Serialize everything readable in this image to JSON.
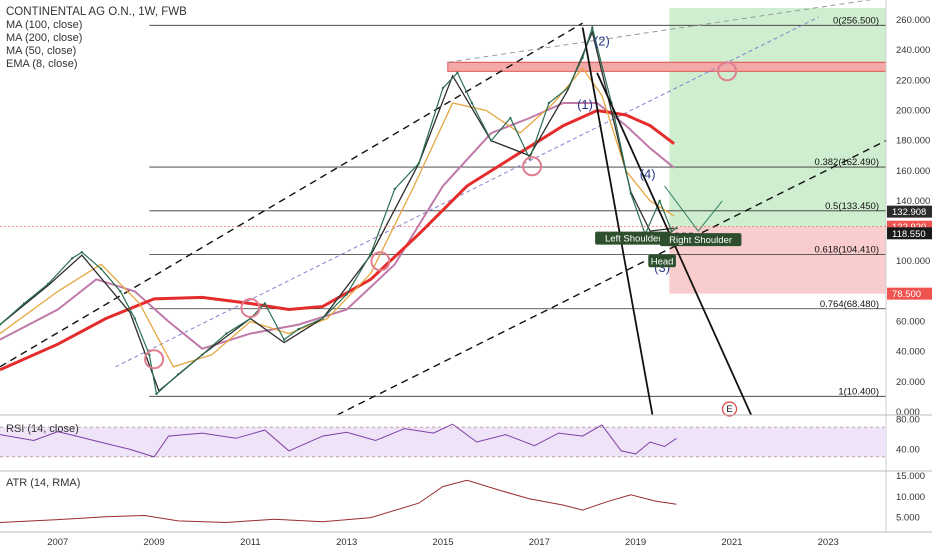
{
  "legend": {
    "title": "CONTINENTAL AG O.N., 1W, FWB",
    "indicators": [
      "MA (100, close)",
      "MA (200, close)",
      "MA (50, close)",
      "EMA (8, close)"
    ]
  },
  "panels": {
    "rsi_label": "RSI (14, close)",
    "atr_label": "ATR (14, RMA)"
  },
  "chart_data": {
    "type": "line",
    "title": "CONTINENTAL AG O.N., 1W, FWB",
    "x_ticks": [
      "2007",
      "2009",
      "2011",
      "2013",
      "2015",
      "2017",
      "2019",
      "2021",
      "2023"
    ],
    "x_tick_years": [
      2007,
      2009,
      2011,
      2013,
      2015,
      2017,
      2019,
      2021,
      2023
    ],
    "xlim": [
      2005.8,
      2024.2
    ],
    "ylim": [
      -2,
      268
    ],
    "y_ticks": [
      0,
      20,
      40,
      60,
      80,
      100,
      120,
      140,
      160,
      180,
      200,
      220,
      240,
      260
    ],
    "y_tick_labels": [
      "0.000",
      "20.000",
      "40.000",
      "60.000",
      "80.000",
      "100.000",
      "120.000",
      "140.000",
      "160.000",
      "180.000",
      "200.000",
      "220.000",
      "240.000",
      "260.000"
    ],
    "price_series": {
      "name": "price",
      "x": [
        2005.8,
        2006.3,
        2006.8,
        2007.3,
        2007.5,
        2007.9,
        2008.3,
        2008.6,
        2008.9,
        2009.05,
        2009.5,
        2010.0,
        2010.5,
        2011.0,
        2011.3,
        2011.7,
        2012.0,
        2012.5,
        2013.0,
        2013.5,
        2014.0,
        2014.5,
        2015.0,
        2015.3,
        2015.6,
        2016.0,
        2016.4,
        2016.8,
        2017.2,
        2017.6,
        2017.9,
        2018.1,
        2018.5,
        2018.9,
        2019.2,
        2019.5,
        2019.75,
        2019.85
      ],
      "values": [
        58,
        72,
        85,
        102,
        106,
        95,
        80,
        62,
        38,
        12,
        25,
        38,
        52,
        62,
        72,
        48,
        55,
        62,
        78,
        105,
        148,
        165,
        215,
        225,
        205,
        180,
        195,
        168,
        205,
        215,
        235,
        255,
        205,
        145,
        118,
        140,
        120,
        122
      ]
    },
    "ma_series": [
      {
        "name": "MA (100, close)",
        "color": "#c07aa8",
        "x": [
          2005.8,
          2007.0,
          2007.8,
          2008.6,
          2009.3,
          2010.0,
          2011.0,
          2012.0,
          2013.0,
          2014.0,
          2015.0,
          2016.0,
          2016.8,
          2017.5,
          2018.2,
          2018.8,
          2019.3,
          2019.8
        ],
        "values": [
          48,
          68,
          88,
          80,
          60,
          42,
          52,
          58,
          68,
          98,
          150,
          185,
          195,
          205,
          205,
          190,
          175,
          162
        ]
      },
      {
        "name": "MA (200, close)",
        "color": "#e52c2c",
        "x": [
          2005.8,
          2007.0,
          2008.0,
          2009.0,
          2010.0,
          2011.0,
          2011.8,
          2012.5,
          2013.5,
          2014.5,
          2015.5,
          2016.5,
          2017.5,
          2018.2,
          2018.8,
          2019.3,
          2019.8
        ],
        "values": [
          28,
          45,
          62,
          75,
          76,
          72,
          68,
          70,
          88,
          118,
          150,
          170,
          190,
          200,
          197,
          190,
          178
        ]
      },
      {
        "name": "MA (50, close)",
        "color": "#e6a640",
        "x": [
          2005.8,
          2007.0,
          2007.9,
          2008.7,
          2009.4,
          2010.2,
          2011.0,
          2011.8,
          2012.6,
          2013.5,
          2014.4,
          2015.2,
          2015.9,
          2016.6,
          2017.3,
          2017.9,
          2018.3,
          2018.8,
          2019.3,
          2019.8
        ],
        "values": [
          52,
          80,
          98,
          72,
          30,
          38,
          60,
          52,
          62,
          92,
          150,
          205,
          200,
          185,
          205,
          228,
          210,
          160,
          140,
          130
        ]
      },
      {
        "name": "EMA (8, close)",
        "color": "#2d2d2d",
        "x": [
          2005.8,
          2006.8,
          2007.5,
          2008.5,
          2009.1,
          2010.0,
          2011.0,
          2011.7,
          2012.5,
          2013.5,
          2014.5,
          2015.2,
          2016.0,
          2016.8,
          2017.6,
          2018.1,
          2018.9,
          2019.3,
          2019.8
        ],
        "values": [
          58,
          84,
          104,
          66,
          14,
          38,
          62,
          46,
          62,
          104,
          165,
          223,
          180,
          170,
          214,
          252,
          146,
          120,
          122
        ]
      }
    ],
    "fib_levels": [
      {
        "label": "0(256.500)",
        "value": 256.5
      },
      {
        "label": "0.382(162.490)",
        "value": 162.49
      },
      {
        "label": "0.5(133.450)",
        "value": 133.45
      },
      {
        "label": "0.618(104.410)",
        "value": 104.41
      },
      {
        "label": "0.764(68.480)",
        "value": 68.48
      },
      {
        "label": "1(10.400)",
        "value": 10.4
      }
    ],
    "price_tags": [
      {
        "label": "132.908",
        "value": 132.908,
        "color": "#2b2b2b"
      },
      {
        "label": "122.920",
        "value": 122.92,
        "color": "#ef5350"
      },
      {
        "label": "118.550",
        "value": 118.55,
        "color": "#1a1a1a"
      },
      {
        "label": "78.500",
        "value": 78.5,
        "color": "#ef5350"
      }
    ],
    "zones": {
      "target_top": 268,
      "entry": 122.92,
      "stop": 78.5,
      "x_start": 2019.7,
      "x_end": 2024.2
    },
    "resistance_zone": {
      "low": 226,
      "high": 232,
      "x_start": 2015.1,
      "x_end": 2024.2
    },
    "wave_labels": [
      {
        "label": "(2)",
        "x": 2018.3,
        "y": 243
      },
      {
        "label": "(1)",
        "x": 2017.95,
        "y": 201
      },
      {
        "label": "(4)",
        "x": 2019.25,
        "y": 155
      },
      {
        "label": "(3)",
        "x": 2019.55,
        "y": 93
      },
      {
        "label": "E",
        "x": 2020.95,
        "y": 2
      }
    ],
    "pattern_labels": [
      {
        "label": "Left Shoulder",
        "x": 2018.95,
        "y": 113
      },
      {
        "label": "Right Shoulder",
        "x": 2020.35,
        "y": 112
      },
      {
        "label": "Head",
        "x": 2019.55,
        "y": 98
      }
    ],
    "rsi": {
      "label": "RSI (14, close)",
      "ylim": [
        15,
        85
      ],
      "y_ticks": [
        40,
        80
      ],
      "y_tick_labels": [
        "40.00",
        "80.00"
      ],
      "band": [
        30,
        70
      ],
      "x": [
        2005.8,
        2006.5,
        2007.0,
        2007.5,
        2008.0,
        2008.5,
        2009.0,
        2009.3,
        2010.0,
        2010.7,
        2011.3,
        2011.8,
        2012.5,
        2013.0,
        2013.6,
        2014.2,
        2014.8,
        2015.2,
        2015.7,
        2016.3,
        2016.9,
        2017.4,
        2017.9,
        2018.3,
        2018.7,
        2019.0,
        2019.3,
        2019.6,
        2019.85
      ],
      "values": [
        60,
        52,
        64,
        56,
        48,
        40,
        30,
        58,
        62,
        55,
        66,
        38,
        58,
        63,
        52,
        68,
        62,
        74,
        50,
        60,
        45,
        62,
        58,
        73,
        38,
        34,
        50,
        44,
        55
      ]
    },
    "atr": {
      "label": "ATR (14, RMA)",
      "ylim": [
        2,
        16
      ],
      "y_ticks": [
        5,
        10,
        15
      ],
      "y_tick_labels": [
        "5.000",
        "10.000",
        "15.000"
      ],
      "x": [
        2005.8,
        2007.0,
        2008.0,
        2008.8,
        2009.5,
        2010.5,
        2011.5,
        2012.5,
        2013.5,
        2014.5,
        2015.0,
        2015.5,
        2016.2,
        2016.8,
        2017.5,
        2017.9,
        2018.4,
        2018.9,
        2019.4,
        2019.85
      ],
      "values": [
        3.8,
        4.5,
        5.2,
        5.5,
        4.2,
        3.8,
        4.6,
        4.0,
        5.0,
        8.5,
        12.5,
        14.0,
        11.5,
        9.5,
        8.0,
        6.8,
        8.8,
        10.5,
        9.0,
        8.2
      ]
    }
  }
}
